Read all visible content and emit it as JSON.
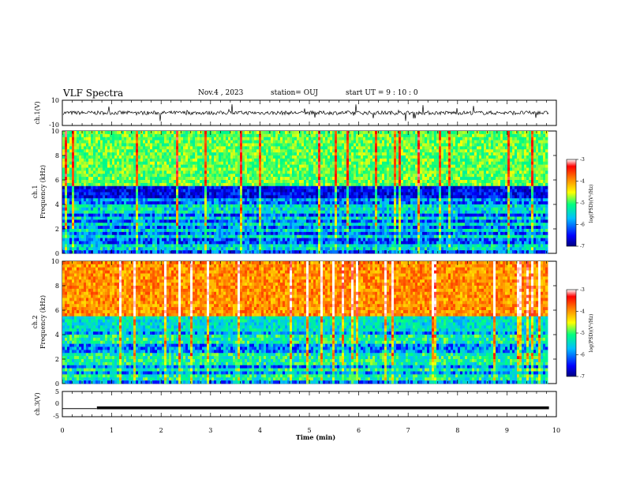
{
  "header": {
    "title": "VLF Spectra",
    "date": "Nov.4 , 2023",
    "station": "station= OUJ",
    "start": "start UT = 9 : 10 : 0"
  },
  "chart_data": [
    {
      "type": "line",
      "panel": "ch1-waveform",
      "ylabel": "ch.1(V)",
      "ylim": [
        -10,
        10
      ],
      "yticks": [
        "10",
        "-10"
      ],
      "xlim": [
        0,
        10
      ],
      "baseline": 0
    },
    {
      "type": "heatmap",
      "panel": "ch1-spectrogram",
      "ylabel_lines": [
        "ch.1",
        "Frequency (kHz)"
      ],
      "ylim": [
        0,
        10
      ],
      "yticks": [
        "0",
        "2",
        "4",
        "6",
        "8",
        "10"
      ],
      "xlim": [
        0,
        9.85
      ],
      "colorbar": {
        "label": "log(PSD)(V²/Hz)",
        "range": [
          -7,
          -3
        ],
        "ticks": [
          "-3",
          "-4",
          "-5",
          "-6",
          "-7"
        ]
      },
      "colormap": [
        "#000080",
        "#0000ff",
        "#00bfff",
        "#00ff80",
        "#ffff00",
        "#ff8000",
        "#ff0000",
        "#ffffff"
      ]
    },
    {
      "type": "heatmap",
      "panel": "ch2-spectrogram",
      "ylabel_lines": [
        "ch.2",
        "Frequency (kHz)"
      ],
      "ylim": [
        0,
        10
      ],
      "yticks": [
        "0",
        "2",
        "4",
        "6",
        "8",
        "10"
      ],
      "xlim": [
        0,
        9.85
      ],
      "colorbar": {
        "label": "log(PSD)(V²/Hz)",
        "range": [
          -7,
          -3
        ],
        "ticks": [
          "-3",
          "-4",
          "-5",
          "-6",
          "-7"
        ]
      },
      "colormap": [
        "#000080",
        "#0000ff",
        "#00bfff",
        "#00ff80",
        "#ffff00",
        "#ff8000",
        "#ff0000",
        "#ffffff"
      ]
    },
    {
      "type": "line",
      "panel": "ch3-trace",
      "ylabel": "ch.3(V)",
      "ylim": [
        -5,
        5
      ],
      "yticks": [
        "5",
        "0",
        "-5"
      ],
      "xlim": [
        0,
        10
      ],
      "level": -1.5,
      "x_start": 0.7,
      "xlabel": "Time (min)",
      "xticks": [
        "0",
        "1",
        "2",
        "3",
        "4",
        "5",
        "6",
        "7",
        "8",
        "9",
        "10"
      ]
    }
  ]
}
